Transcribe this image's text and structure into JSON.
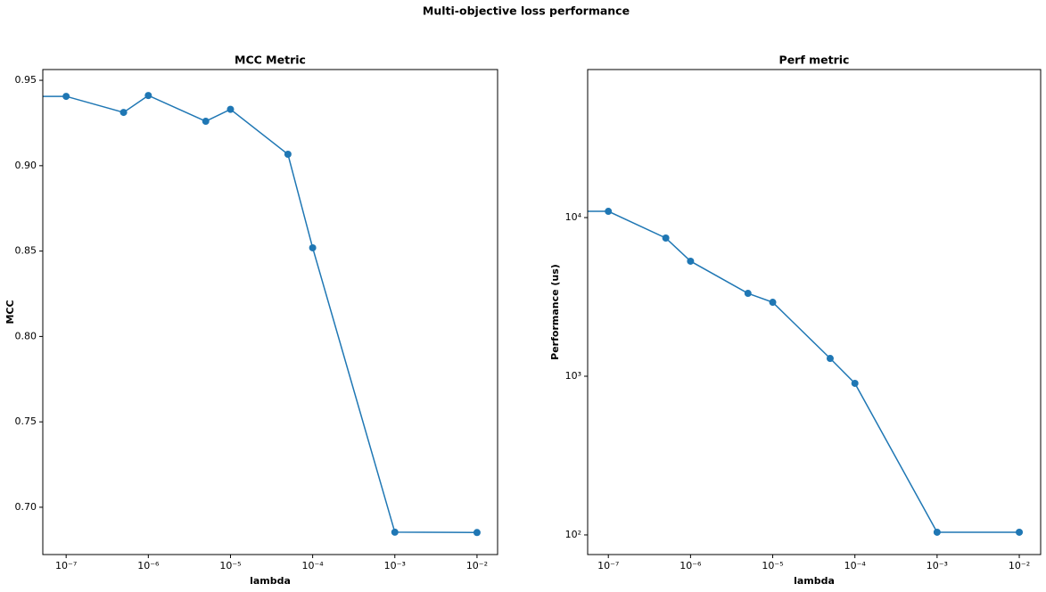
{
  "title": "Multi-objective loss performance",
  "chart_data": [
    {
      "type": "line",
      "title": "MCC Metric",
      "xlabel": "lambda",
      "ylabel": "MCC",
      "xscale": "log",
      "yscale": "linear",
      "x": [
        0,
        1e-07,
        5e-07,
        1e-06,
        5e-06,
        1e-05,
        5e-05,
        0.0001,
        0.001,
        0.01
      ],
      "series": [
        {
          "color": "#1f77b4",
          "values": [
            0.9406,
            0.9406,
            0.9312,
            0.9411,
            0.926,
            0.933,
            0.9067,
            0.8519,
            0.6854,
            0.6852
          ]
        }
      ],
      "xlim": [
        5.2e-08,
        0.0178
      ],
      "ylim": [
        0.6723,
        0.9563
      ],
      "xticks": [
        {
          "value": 1e-07,
          "label": "10⁻⁷"
        },
        {
          "value": 1e-06,
          "label": "10⁻⁶"
        },
        {
          "value": 1e-05,
          "label": "10⁻⁵"
        },
        {
          "value": 0.0001,
          "label": "10⁻⁴"
        },
        {
          "value": 0.001,
          "label": "10⁻³"
        },
        {
          "value": 0.01,
          "label": "10⁻²"
        }
      ],
      "yticks": [
        {
          "value": 0.7,
          "label": "0.70"
        },
        0.75,
        {
          "value": 0.8,
          "label": "0.80"
        },
        0.85,
        {
          "value": 0.9,
          "label": "0.90"
        },
        0.95
      ]
    },
    {
      "type": "line",
      "title": "Perf metric",
      "xlabel": "lambda",
      "ylabel": "Performance (us)",
      "xscale": "log",
      "yscale": "log",
      "x": [
        0,
        1e-07,
        5e-07,
        1e-06,
        5e-06,
        1e-05,
        5e-05,
        0.0001,
        0.001,
        0.01
      ],
      "series": [
        {
          "color": "#1f77b4",
          "values": [
            10950,
            10950,
            7430,
            5310,
            3330,
            2925,
            1295,
            902,
            104,
            104
          ]
        }
      ],
      "xlim": [
        5.6e-08,
        0.0182
      ],
      "ylim": [
        75.2,
        85700
      ],
      "xticks": [
        {
          "value": 1e-07,
          "label": "10⁻⁷"
        },
        {
          "value": 1e-06,
          "label": "10⁻⁶"
        },
        {
          "value": 1e-05,
          "label": "10⁻⁵"
        },
        {
          "value": 0.0001,
          "label": "10⁻⁴"
        },
        {
          "value": 0.001,
          "label": "10⁻³"
        },
        {
          "value": 0.01,
          "label": "10⁻²"
        }
      ],
      "yticks": [
        {
          "value": 100,
          "label": "10²"
        },
        {
          "value": 1000,
          "label": "10³"
        },
        {
          "value": 10000,
          "label": "10⁴"
        }
      ]
    }
  ]
}
